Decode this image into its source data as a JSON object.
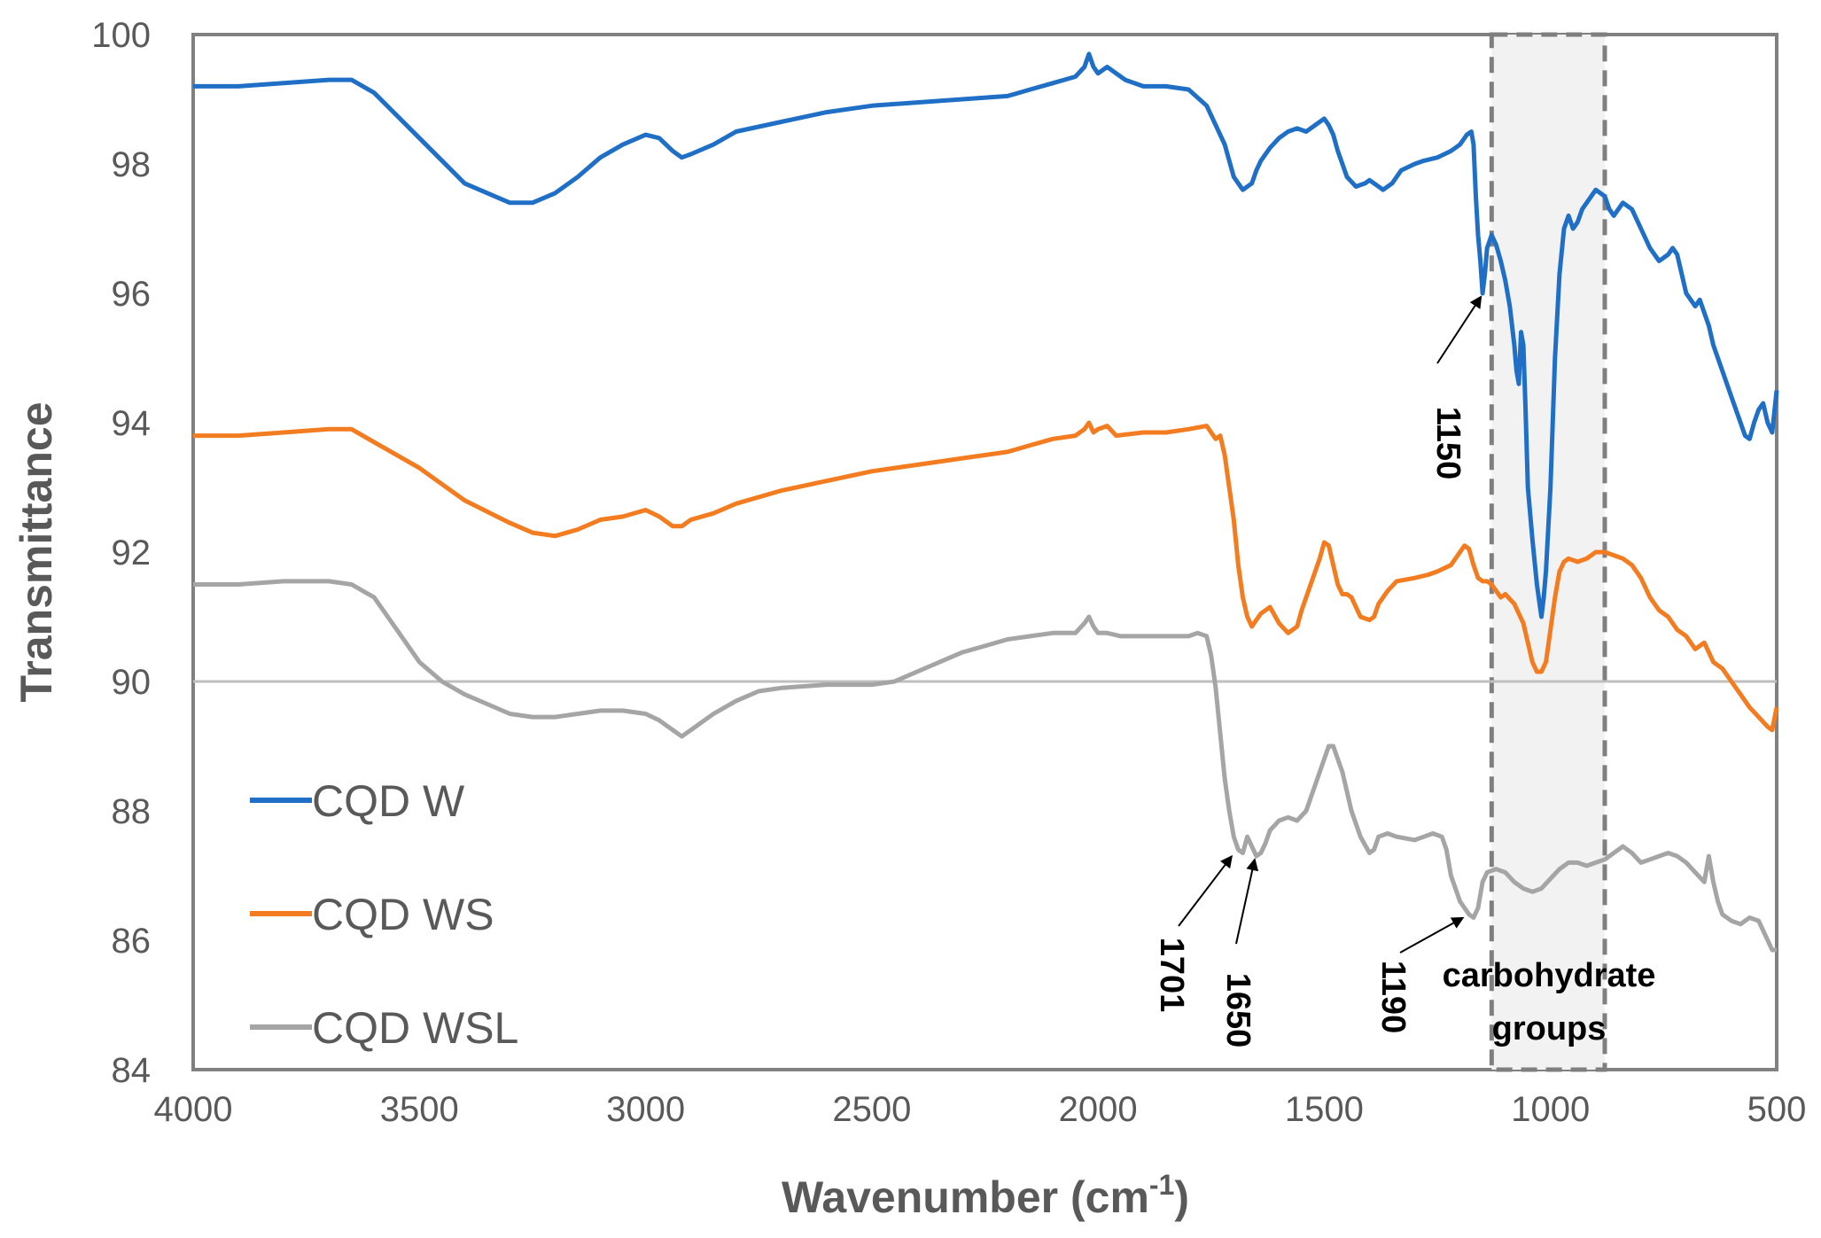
{
  "chart_data": {
    "type": "line",
    "title": "",
    "xlabel": "Wavenumber (cm",
    "xlabel_sup": "-1",
    "xlabel_close": ")",
    "ylabel": "Transmittance",
    "xlim": [
      4000,
      500
    ],
    "ylim": [
      84,
      100
    ],
    "reference_line_y": 90,
    "x_ticks": [
      4000,
      3500,
      3000,
      2500,
      2000,
      1500,
      1000,
      500
    ],
    "y_ticks": [
      84,
      86,
      88,
      90,
      92,
      94,
      96,
      98,
      100
    ],
    "legend_position": "bottom-left",
    "series": [
      {
        "name": "CQD W",
        "color": "#1f6fc6",
        "x": [
          4000,
          3900,
          3800,
          3700,
          3650,
          3600,
          3500,
          3400,
          3300,
          3250,
          3200,
          3150,
          3100,
          3050,
          3000,
          2970,
          2940,
          2920,
          2900,
          2850,
          2800,
          2700,
          2600,
          2500,
          2400,
          2300,
          2200,
          2150,
          2100,
          2050,
          2030,
          2020,
          2010,
          2000,
          1980,
          1960,
          1940,
          1900,
          1850,
          1800,
          1760,
          1740,
          1720,
          1700,
          1680,
          1660,
          1650,
          1640,
          1620,
          1600,
          1580,
          1560,
          1540,
          1520,
          1500,
          1490,
          1480,
          1470,
          1460,
          1450,
          1430,
          1410,
          1400,
          1380,
          1370,
          1350,
          1330,
          1300,
          1280,
          1250,
          1220,
          1200,
          1185,
          1175,
          1170,
          1165,
          1160,
          1155,
          1150,
          1145,
          1140,
          1130,
          1120,
          1110,
          1100,
          1090,
          1080,
          1075,
          1070,
          1065,
          1060,
          1055,
          1050,
          1040,
          1030,
          1020,
          1015,
          1010,
          1000,
          990,
          980,
          970,
          960,
          950,
          940,
          930,
          920,
          900,
          880,
          870,
          860,
          850,
          840,
          820,
          800,
          780,
          760,
          740,
          730,
          720,
          700,
          680,
          670,
          660,
          650,
          640,
          630,
          620,
          600,
          580,
          570,
          560,
          550,
          540,
          530,
          520,
          510,
          500
        ],
        "y": [
          99.2,
          99.2,
          99.25,
          99.3,
          99.3,
          99.1,
          98.4,
          97.7,
          97.4,
          97.4,
          97.55,
          97.8,
          98.1,
          98.3,
          98.45,
          98.4,
          98.2,
          98.1,
          98.15,
          98.3,
          98.5,
          98.65,
          98.8,
          98.9,
          98.95,
          99.0,
          99.05,
          99.15,
          99.25,
          99.35,
          99.5,
          99.7,
          99.5,
          99.4,
          99.5,
          99.4,
          99.3,
          99.2,
          99.2,
          99.15,
          98.9,
          98.6,
          98.3,
          97.8,
          97.6,
          97.7,
          97.9,
          98.05,
          98.25,
          98.4,
          98.5,
          98.55,
          98.5,
          98.6,
          98.7,
          98.6,
          98.45,
          98.2,
          98.0,
          97.8,
          97.65,
          97.7,
          97.75,
          97.65,
          97.6,
          97.7,
          97.9,
          98.0,
          98.05,
          98.1,
          98.2,
          98.3,
          98.45,
          98.5,
          98.3,
          97.5,
          96.9,
          96.5,
          96.0,
          96.3,
          96.7,
          96.9,
          96.75,
          96.5,
          96.2,
          95.8,
          95.2,
          94.8,
          94.6,
          95.4,
          95.2,
          94.2,
          93.0,
          92.2,
          91.5,
          91.0,
          91.3,
          91.7,
          93.0,
          95.0,
          96.3,
          97.0,
          97.2,
          97.0,
          97.1,
          97.3,
          97.4,
          97.6,
          97.5,
          97.3,
          97.2,
          97.3,
          97.4,
          97.3,
          97.0,
          96.7,
          96.5,
          96.6,
          96.7,
          96.6,
          96.0,
          95.8,
          95.9,
          95.7,
          95.5,
          95.2,
          95.0,
          94.8,
          94.4,
          94.0,
          93.8,
          93.75,
          94.0,
          94.2,
          94.3,
          94.0,
          93.85,
          94.5
        ]
      },
      {
        "name": "CQD WS",
        "color": "#f47c20",
        "x": [
          4000,
          3900,
          3800,
          3700,
          3650,
          3600,
          3500,
          3400,
          3300,
          3250,
          3200,
          3150,
          3100,
          3050,
          3000,
          2970,
          2940,
          2920,
          2900,
          2850,
          2800,
          2700,
          2600,
          2500,
          2400,
          2300,
          2200,
          2150,
          2100,
          2050,
          2030,
          2020,
          2010,
          2000,
          1980,
          1960,
          1900,
          1850,
          1800,
          1760,
          1740,
          1730,
          1720,
          1710,
          1700,
          1690,
          1680,
          1670,
          1660,
          1650,
          1640,
          1620,
          1600,
          1580,
          1560,
          1550,
          1530,
          1510,
          1500,
          1490,
          1480,
          1470,
          1460,
          1450,
          1440,
          1420,
          1400,
          1390,
          1380,
          1360,
          1340,
          1300,
          1270,
          1250,
          1220,
          1200,
          1190,
          1180,
          1170,
          1160,
          1150,
          1140,
          1130,
          1120,
          1110,
          1100,
          1080,
          1060,
          1050,
          1040,
          1030,
          1020,
          1010,
          1000,
          990,
          980,
          970,
          960,
          940,
          920,
          900,
          880,
          860,
          840,
          820,
          800,
          780,
          760,
          740,
          720,
          700,
          680,
          660,
          640,
          620,
          600,
          580,
          560,
          540,
          520,
          510,
          500
        ],
        "y": [
          93.8,
          93.8,
          93.85,
          93.9,
          93.9,
          93.7,
          93.3,
          92.8,
          92.45,
          92.3,
          92.25,
          92.35,
          92.5,
          92.55,
          92.65,
          92.55,
          92.4,
          92.4,
          92.5,
          92.6,
          92.75,
          92.95,
          93.1,
          93.25,
          93.35,
          93.45,
          93.55,
          93.65,
          93.75,
          93.8,
          93.9,
          94.0,
          93.85,
          93.9,
          93.95,
          93.8,
          93.85,
          93.85,
          93.9,
          93.95,
          93.75,
          93.8,
          93.5,
          93.0,
          92.5,
          91.8,
          91.3,
          91.0,
          90.85,
          90.95,
          91.05,
          91.15,
          90.9,
          90.75,
          90.85,
          91.1,
          91.5,
          91.9,
          92.15,
          92.1,
          91.8,
          91.5,
          91.35,
          91.35,
          91.3,
          91.0,
          90.95,
          91.0,
          91.2,
          91.4,
          91.55,
          91.6,
          91.65,
          91.7,
          91.8,
          92.0,
          92.1,
          92.05,
          91.8,
          91.6,
          91.55,
          91.55,
          91.5,
          91.4,
          91.3,
          91.35,
          91.2,
          90.9,
          90.6,
          90.3,
          90.15,
          90.15,
          90.3,
          90.8,
          91.3,
          91.7,
          91.85,
          91.9,
          91.85,
          91.9,
          92.0,
          92.0,
          91.95,
          91.9,
          91.8,
          91.6,
          91.3,
          91.1,
          91.0,
          90.8,
          90.7,
          90.5,
          90.6,
          90.3,
          90.2,
          90.0,
          89.8,
          89.6,
          89.45,
          89.3,
          89.25,
          89.6
        ]
      },
      {
        "name": "CQD WSL",
        "color": "#a5a5a5",
        "x": [
          4000,
          3900,
          3800,
          3700,
          3650,
          3600,
          3550,
          3500,
          3450,
          3400,
          3350,
          3300,
          3250,
          3200,
          3150,
          3100,
          3050,
          3000,
          2970,
          2950,
          2930,
          2920,
          2900,
          2850,
          2800,
          2750,
          2700,
          2600,
          2500,
          2450,
          2400,
          2350,
          2300,
          2250,
          2200,
          2150,
          2100,
          2050,
          2030,
          2020,
          2010,
          2000,
          1980,
          1950,
          1900,
          1850,
          1800,
          1780,
          1760,
          1750,
          1740,
          1730,
          1720,
          1710,
          1700,
          1690,
          1680,
          1670,
          1660,
          1650,
          1640,
          1630,
          1620,
          1600,
          1580,
          1560,
          1540,
          1520,
          1500,
          1490,
          1480,
          1470,
          1460,
          1450,
          1440,
          1420,
          1400,
          1390,
          1380,
          1360,
          1340,
          1300,
          1280,
          1260,
          1240,
          1230,
          1220,
          1210,
          1200,
          1190,
          1180,
          1170,
          1160,
          1150,
          1140,
          1120,
          1100,
          1080,
          1060,
          1040,
          1020,
          1000,
          980,
          960,
          940,
          920,
          900,
          880,
          860,
          840,
          820,
          800,
          780,
          760,
          740,
          720,
          700,
          680,
          660,
          650,
          640,
          630,
          620,
          600,
          580,
          560,
          540,
          520,
          510,
          500
        ],
        "y": [
          91.5,
          91.5,
          91.55,
          91.55,
          91.5,
          91.3,
          90.8,
          90.3,
          90.0,
          89.8,
          89.65,
          89.5,
          89.45,
          89.45,
          89.5,
          89.55,
          89.55,
          89.5,
          89.4,
          89.3,
          89.2,
          89.15,
          89.25,
          89.5,
          89.7,
          89.85,
          89.9,
          89.95,
          89.95,
          90.0,
          90.15,
          90.3,
          90.45,
          90.55,
          90.65,
          90.7,
          90.75,
          90.75,
          90.9,
          91.0,
          90.85,
          90.75,
          90.75,
          90.7,
          90.7,
          90.7,
          90.7,
          90.75,
          90.7,
          90.4,
          89.9,
          89.2,
          88.5,
          88.0,
          87.6,
          87.4,
          87.35,
          87.6,
          87.45,
          87.3,
          87.35,
          87.5,
          87.7,
          87.85,
          87.9,
          87.85,
          88.0,
          88.4,
          88.8,
          89.0,
          89.0,
          88.8,
          88.6,
          88.3,
          88.0,
          87.6,
          87.35,
          87.4,
          87.6,
          87.65,
          87.6,
          87.55,
          87.6,
          87.65,
          87.6,
          87.4,
          87.0,
          86.8,
          86.6,
          86.5,
          86.4,
          86.35,
          86.5,
          86.9,
          87.05,
          87.1,
          87.05,
          86.9,
          86.8,
          86.75,
          86.8,
          86.95,
          87.1,
          87.2,
          87.2,
          87.15,
          87.2,
          87.25,
          87.35,
          87.45,
          87.35,
          87.2,
          87.25,
          87.3,
          87.35,
          87.3,
          87.2,
          87.05,
          86.9,
          87.3,
          86.9,
          86.6,
          86.4,
          86.3,
          86.25,
          86.35,
          86.3,
          86.0,
          85.85,
          85.85
        ]
      }
    ],
    "annotations": [
      {
        "label": "1150",
        "target_x": 1150,
        "target_y": 96.0,
        "series": "CQD W"
      },
      {
        "label": "1701",
        "target_x": 1701,
        "target_y": 87.35,
        "series": "CQD WSL"
      },
      {
        "label": "1650",
        "target_x": 1650,
        "target_y": 87.3,
        "series": "CQD WSL"
      },
      {
        "label": "1190",
        "target_x": 1190,
        "target_y": 86.4,
        "series": "CQD WSL"
      }
    ],
    "highlight_region": {
      "x_range": [
        1130,
        880
      ],
      "label_line1": "carbohydrate",
      "label_line2": "groups"
    }
  }
}
